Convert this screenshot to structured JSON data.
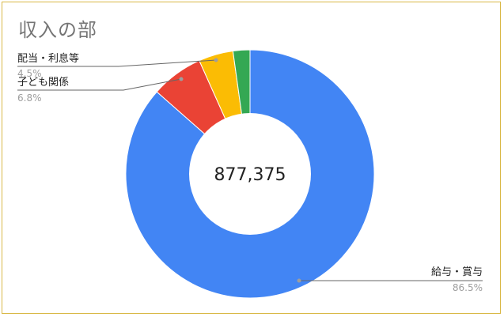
{
  "chart_data": {
    "type": "pie",
    "title": "収入の部",
    "center_total": "877,375",
    "slices": [
      {
        "label": "給与・賞与",
        "percent_label": "86.5%",
        "value": 86.5,
        "color": "#4285f4"
      },
      {
        "label": "子ども関係",
        "percent_label": "6.8%",
        "value": 6.8,
        "color": "#ea4335"
      },
      {
        "label": "配当・利息等",
        "percent_label": "4.5%",
        "value": 4.5,
        "color": "#fbbc04"
      },
      {
        "label": "",
        "percent_label": "",
        "value": 2.2,
        "color": "#34a853"
      }
    ]
  }
}
